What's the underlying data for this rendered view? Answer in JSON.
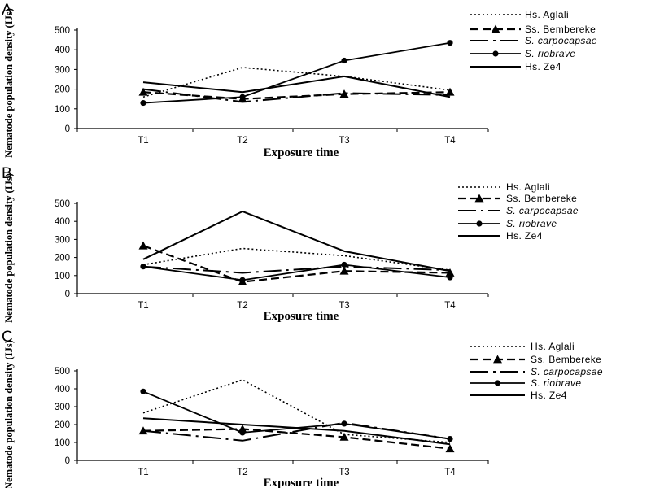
{
  "chart_data": [
    {
      "type": "line",
      "panel": "A",
      "categories": [
        "T1",
        "T2",
        "T3",
        "T4"
      ],
      "xlabel": "Exposure time",
      "ylabel": "Nematode population density (IJs)",
      "ylim": [
        0,
        500
      ],
      "yticks": [
        0,
        100,
        200,
        300,
        400,
        500
      ],
      "grid": false,
      "legend_position": "top-right",
      "series": [
        {
          "name": "Hs. Aglali",
          "values": [
            160,
            310,
            265,
            195
          ]
        },
        {
          "name": "Ss. Bembereke",
          "values": [
            185,
            150,
            175,
            185
          ]
        },
        {
          "name": "S. carpocapsae",
          "values": [
            200,
            135,
            180,
            170
          ]
        },
        {
          "name": "S. riobrave",
          "values": [
            130,
            160,
            345,
            435
          ]
        },
        {
          "name": "Hs. Ze4",
          "values": [
            235,
            185,
            265,
            160
          ]
        }
      ]
    },
    {
      "type": "line",
      "panel": "B",
      "categories": [
        "T1",
        "T2",
        "T3",
        "T4"
      ],
      "xlabel": "Exposure time",
      "ylabel": "Nematode population density (IJs)",
      "ylim": [
        0,
        500
      ],
      "yticks": [
        0,
        100,
        200,
        300,
        400,
        500
      ],
      "grid": false,
      "legend_position": "top-right",
      "series": [
        {
          "name": "Hs. Aglali",
          "values": [
            160,
            250,
            210,
            130
          ]
        },
        {
          "name": "Ss. Bembereke",
          "values": [
            265,
            65,
            125,
            115
          ]
        },
        {
          "name": "S. carpocapsae",
          "values": [
            150,
            115,
            150,
            130
          ]
        },
        {
          "name": "S. riobrave",
          "values": [
            150,
            75,
            160,
            90
          ]
        },
        {
          "name": "Hs. Ze4",
          "values": [
            190,
            455,
            235,
            125
          ]
        }
      ]
    },
    {
      "type": "line",
      "panel": "C",
      "categories": [
        "T1",
        "T2",
        "T3",
        "T4"
      ],
      "xlabel": "Exposure time",
      "ylabel": "Nematode population density (IJs)",
      "ylim": [
        0,
        500
      ],
      "yticks": [
        0,
        100,
        200,
        300,
        400,
        500
      ],
      "grid": false,
      "legend_position": "top-right",
      "series": [
        {
          "name": "Hs. Aglali",
          "values": [
            265,
            450,
            145,
            100
          ]
        },
        {
          "name": "Ss. Bembereke",
          "values": [
            165,
            175,
            130,
            65
          ]
        },
        {
          "name": "S. carpocapsae",
          "values": [
            165,
            110,
            210,
            120
          ]
        },
        {
          "name": "S. riobrave",
          "values": [
            385,
            155,
            205,
            120
          ]
        },
        {
          "name": "Hs. Ze4",
          "values": [
            235,
            200,
            165,
            90
          ]
        }
      ]
    }
  ],
  "colors": {
    "ink": "#000000",
    "background": "#ffffff"
  }
}
